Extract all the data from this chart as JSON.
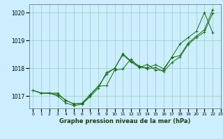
{
  "background_color": "#cceeff",
  "grid_color": "#99ccbb",
  "line_color": "#1a6b1a",
  "xlabel": "Graphe pression niveau de la mer (hPa)",
  "xlim": [
    -0.5,
    23
  ],
  "ylim": [
    1016.55,
    1020.3
  ],
  "yticks": [
    1017,
    1018,
    1019,
    1020
  ],
  "xticks": [
    0,
    1,
    2,
    3,
    4,
    5,
    6,
    7,
    8,
    9,
    10,
    11,
    12,
    13,
    14,
    15,
    16,
    17,
    18,
    19,
    20,
    21,
    22,
    23
  ],
  "line1": [
    1017.2,
    1017.1,
    1017.1,
    1017.1,
    1016.83,
    1016.72,
    1016.73,
    1017.02,
    1017.35,
    1017.37,
    1017.93,
    1017.97,
    1018.33,
    1018.02,
    1018.13,
    1017.93,
    1017.92,
    1018.4,
    1018.87,
    1019.1,
    1019.32,
    1020.0,
    1019.28
  ],
  "line2": [
    1017.2,
    1017.1,
    1017.1,
    1017.05,
    1016.85,
    1016.7,
    1016.74,
    1017.05,
    1017.35,
    1017.78,
    1018.0,
    1018.48,
    1018.22,
    1018.03,
    1018.02,
    1018.12,
    1017.98,
    1018.38,
    1018.45,
    1018.9,
    1019.15,
    1019.38,
    1020.1
  ],
  "line3": [
    1017.2,
    1017.1,
    1017.1,
    1017.0,
    1016.75,
    1016.65,
    1016.7,
    1016.98,
    1017.28,
    1017.85,
    1017.98,
    1018.52,
    1018.25,
    1018.08,
    1017.97,
    1018.02,
    1017.87,
    1018.2,
    1018.4,
    1018.85,
    1019.1,
    1019.3,
    1019.97
  ]
}
